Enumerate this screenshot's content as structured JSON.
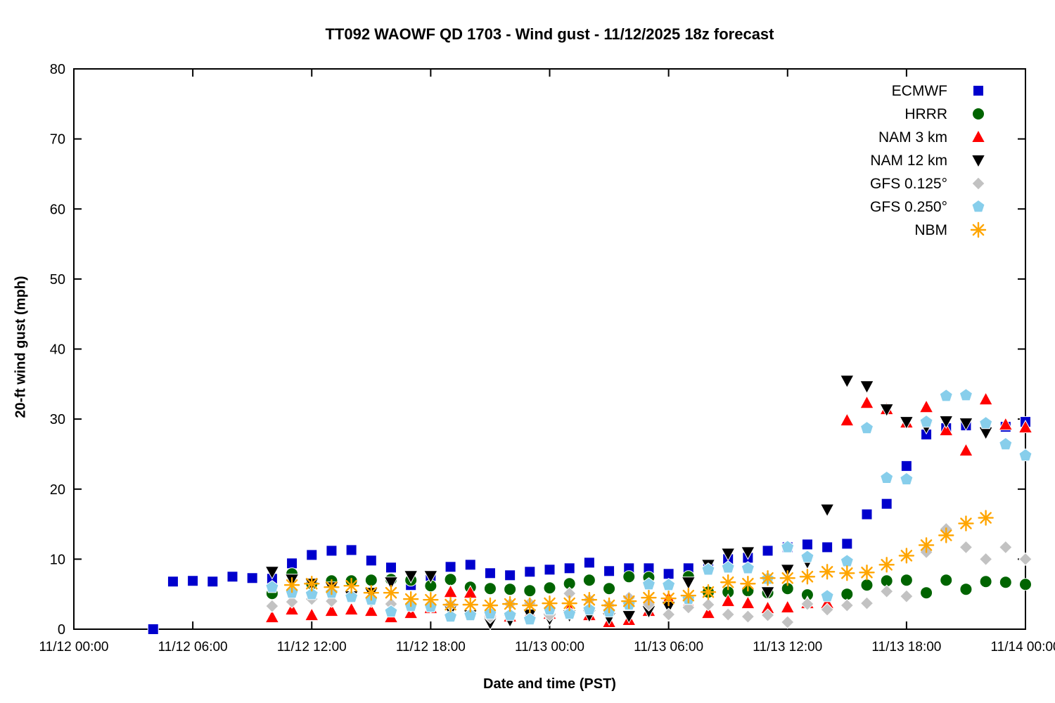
{
  "chart_data": {
    "type": "scatter",
    "title": "TT092 WAOWF QD 1703 - Wind gust - 11/12/2025 18z forecast",
    "xlabel": "Date and time (PST)",
    "ylabel": "20-ft wind gust (mph)",
    "ylim": [
      0,
      80
    ],
    "yticks": [
      0,
      10,
      20,
      30,
      40,
      50,
      60,
      70,
      80
    ],
    "x_hours_range": [
      0,
      48
    ],
    "xticks_hours": [
      0,
      6,
      12,
      18,
      24,
      30,
      36,
      42,
      48
    ],
    "xtick_labels": [
      "11/12 00:00",
      "11/12 06:00",
      "11/12 12:00",
      "11/12 18:00",
      "11/13 00:00",
      "11/13 06:00",
      "11/13 12:00",
      "11/13 18:00",
      "11/14 00:00"
    ],
    "grid": false,
    "legend_position": "top-right-inside",
    "series": [
      {
        "name": "ECMWF",
        "marker": "square",
        "color": "#0000cd",
        "points": [
          [
            4,
            0
          ],
          [
            5,
            6.8
          ],
          [
            6,
            6.9
          ],
          [
            7,
            6.8
          ],
          [
            8,
            7.5
          ],
          [
            9,
            7.3
          ],
          [
            10,
            7.2
          ],
          [
            11,
            9.4
          ],
          [
            12,
            10.6
          ],
          [
            13,
            11.2
          ],
          [
            14,
            11.3
          ],
          [
            15,
            9.8
          ],
          [
            16,
            8.8
          ],
          [
            17,
            6.3
          ],
          [
            18,
            7.6
          ],
          [
            19,
            8.9
          ],
          [
            20,
            9.2
          ],
          [
            21,
            8.0
          ],
          [
            22,
            7.7
          ],
          [
            23,
            8.2
          ],
          [
            24,
            8.5
          ],
          [
            25,
            8.7
          ],
          [
            26,
            9.5
          ],
          [
            27,
            8.3
          ],
          [
            28,
            8.7
          ],
          [
            29,
            8.7
          ],
          [
            30,
            7.9
          ],
          [
            31,
            8.7
          ],
          [
            32,
            8.8
          ],
          [
            33,
            10.0
          ],
          [
            34,
            10.2
          ],
          [
            35,
            11.2
          ],
          [
            36,
            11.7
          ],
          [
            37,
            12.1
          ],
          [
            38,
            11.7
          ],
          [
            39,
            12.2
          ],
          [
            40,
            16.4
          ],
          [
            41,
            17.9
          ],
          [
            42,
            23.3
          ],
          [
            43,
            27.8
          ],
          [
            44,
            28.7
          ],
          [
            45,
            29.1
          ],
          [
            46,
            29.1
          ],
          [
            47,
            28.9
          ],
          [
            48,
            29.6
          ]
        ]
      },
      {
        "name": "HRRR",
        "marker": "circle",
        "color": "#006400",
        "points": [
          [
            10,
            5.1
          ],
          [
            11,
            7.9
          ],
          [
            12,
            6.5
          ],
          [
            13,
            6.9
          ],
          [
            14,
            6.9
          ],
          [
            15,
            7.0
          ],
          [
            16,
            7.1
          ],
          [
            17,
            7.0
          ],
          [
            18,
            6.2
          ],
          [
            19,
            7.1
          ],
          [
            20,
            6.0
          ],
          [
            21,
            5.8
          ],
          [
            22,
            5.7
          ],
          [
            23,
            5.5
          ],
          [
            24,
            5.9
          ],
          [
            25,
            6.5
          ],
          [
            26,
            7.0
          ],
          [
            27,
            5.8
          ],
          [
            28,
            7.5
          ],
          [
            29,
            7.4
          ],
          [
            30,
            6.3
          ],
          [
            31,
            7.5
          ],
          [
            32,
            5.3
          ],
          [
            33,
            5.3
          ],
          [
            34,
            5.5
          ],
          [
            35,
            5.2
          ],
          [
            36,
            5.8
          ],
          [
            37,
            4.9
          ],
          [
            38,
            4.7
          ],
          [
            39,
            5.0
          ],
          [
            40,
            6.3
          ],
          [
            41,
            6.9
          ],
          [
            42,
            7.0
          ],
          [
            43,
            5.2
          ],
          [
            44,
            7.0
          ],
          [
            45,
            5.7
          ],
          [
            46,
            6.8
          ],
          [
            47,
            6.7
          ],
          [
            48,
            6.4
          ]
        ]
      },
      {
        "name": "NAM 3 km",
        "marker": "triangle-up",
        "color": "#ff0000",
        "points": [
          [
            10,
            1.7
          ],
          [
            11,
            2.8
          ],
          [
            12,
            2.0
          ],
          [
            13,
            2.6
          ],
          [
            14,
            2.8
          ],
          [
            15,
            2.6
          ],
          [
            16,
            1.7
          ],
          [
            17,
            2.3
          ],
          [
            18,
            3.0
          ],
          [
            19,
            5.3
          ],
          [
            20,
            5.2
          ],
          [
            21,
            2.5
          ],
          [
            22,
            1.8
          ],
          [
            23,
            2.3
          ],
          [
            24,
            2.2
          ],
          [
            25,
            2.9
          ],
          [
            26,
            2.0
          ],
          [
            27,
            1.0
          ],
          [
            28,
            1.3
          ],
          [
            29,
            2.6
          ],
          [
            30,
            4.4
          ],
          [
            31,
            3.8
          ],
          [
            32,
            2.3
          ],
          [
            33,
            4.0
          ],
          [
            34,
            3.7
          ],
          [
            35,
            3.0
          ],
          [
            36,
            3.1
          ],
          [
            37,
            3.7
          ],
          [
            38,
            3.7
          ],
          [
            39,
            29.8
          ],
          [
            40,
            32.3
          ],
          [
            41,
            31.4
          ],
          [
            42,
            29.5
          ],
          [
            43,
            31.7
          ],
          [
            44,
            28.4
          ],
          [
            45,
            25.5
          ],
          [
            46,
            32.8
          ],
          [
            47,
            29.2
          ],
          [
            48,
            28.8
          ]
        ]
      },
      {
        "name": "NAM 12 km",
        "marker": "triangle-down",
        "color": "#000000",
        "points": [
          [
            10,
            8.2
          ],
          [
            11,
            7.1
          ],
          [
            12,
            6.5
          ],
          [
            13,
            6.0
          ],
          [
            14,
            4.7
          ],
          [
            15,
            5.2
          ],
          [
            16,
            6.7
          ],
          [
            17,
            7.6
          ],
          [
            18,
            7.6
          ],
          [
            19,
            2.7
          ],
          [
            20,
            2.0
          ],
          [
            21,
            0.9
          ],
          [
            22,
            1.3
          ],
          [
            23,
            2.1
          ],
          [
            24,
            1.5
          ],
          [
            25,
            2.0
          ],
          [
            26,
            2.0
          ],
          [
            27,
            1.6
          ],
          [
            28,
            1.9
          ],
          [
            29,
            2.6
          ],
          [
            30,
            3.2
          ],
          [
            31,
            6.7
          ],
          [
            32,
            9.2
          ],
          [
            33,
            10.8
          ],
          [
            34,
            11.0
          ],
          [
            35,
            5.3
          ],
          [
            36,
            8.5
          ],
          [
            37,
            9.6
          ],
          [
            38,
            17.1
          ],
          [
            39,
            35.5
          ],
          [
            40,
            34.7
          ],
          [
            41,
            31.4
          ],
          [
            42,
            29.6
          ],
          [
            43,
            28.9
          ],
          [
            44,
            29.7
          ],
          [
            45,
            29.4
          ],
          [
            46,
            28.1
          ]
        ]
      },
      {
        "name": "GFS 0.125°",
        "marker": "diamond",
        "color": "#c2c2c2",
        "points": [
          [
            10,
            3.3
          ],
          [
            11,
            3.9
          ],
          [
            12,
            4.3
          ],
          [
            13,
            4.0
          ],
          [
            14,
            4.6
          ],
          [
            15,
            4.0
          ],
          [
            16,
            3.6
          ],
          [
            17,
            3.3
          ],
          [
            18,
            3.2
          ],
          [
            19,
            3.5
          ],
          [
            20,
            2.0
          ],
          [
            21,
            1.7
          ],
          [
            22,
            3.6
          ],
          [
            23,
            3.7
          ],
          [
            24,
            2.0
          ],
          [
            25,
            5.1
          ],
          [
            26,
            4.2
          ],
          [
            27,
            3.4
          ],
          [
            28,
            4.5
          ],
          [
            29,
            3.5
          ],
          [
            30,
            2.1
          ],
          [
            31,
            3.1
          ],
          [
            32,
            3.5
          ],
          [
            33,
            2.1
          ],
          [
            34,
            1.8
          ],
          [
            35,
            2.0
          ],
          [
            36,
            1.0
          ],
          [
            37,
            3.6
          ],
          [
            38,
            2.8
          ],
          [
            39,
            3.4
          ],
          [
            40,
            3.7
          ],
          [
            41,
            5.4
          ],
          [
            42,
            4.7
          ],
          [
            43,
            11.0
          ],
          [
            44,
            14.3
          ],
          [
            45,
            11.7
          ],
          [
            46,
            10.0
          ],
          [
            47,
            11.7
          ],
          [
            48,
            10.0
          ]
        ]
      },
      {
        "name": "GFS 0.250°",
        "marker": "pentagon",
        "color": "#87ceeb",
        "points": [
          [
            10,
            6.0
          ],
          [
            11,
            5.2
          ],
          [
            12,
            5.0
          ],
          [
            13,
            5.2
          ],
          [
            14,
            4.6
          ],
          [
            15,
            4.2
          ],
          [
            16,
            2.5
          ],
          [
            17,
            3.3
          ],
          [
            18,
            3.2
          ],
          [
            19,
            1.8
          ],
          [
            20,
            2.0
          ],
          [
            21,
            2.2
          ],
          [
            22,
            2.0
          ],
          [
            23,
            1.4
          ],
          [
            24,
            2.8
          ],
          [
            25,
            2.2
          ],
          [
            26,
            2.8
          ],
          [
            27,
            2.5
          ],
          [
            28,
            3.5
          ],
          [
            29,
            6.4
          ],
          [
            30,
            6.3
          ],
          [
            31,
            4.3
          ],
          [
            32,
            8.5
          ],
          [
            33,
            8.8
          ],
          [
            34,
            8.7
          ],
          [
            35,
            7.2
          ],
          [
            36,
            11.7
          ],
          [
            37,
            10.3
          ],
          [
            38,
            4.7
          ],
          [
            39,
            9.7
          ],
          [
            40,
            28.7
          ],
          [
            41,
            21.6
          ],
          [
            42,
            21.4
          ],
          [
            43,
            29.6
          ],
          [
            44,
            33.3
          ],
          [
            45,
            33.4
          ],
          [
            46,
            29.4
          ],
          [
            47,
            26.4
          ],
          [
            48,
            24.8
          ]
        ]
      },
      {
        "name": "NBM",
        "marker": "asterisk",
        "color": "#ffa500",
        "points": [
          [
            11,
            6.3
          ],
          [
            12,
            6.5
          ],
          [
            13,
            6.0
          ],
          [
            14,
            6.2
          ],
          [
            15,
            5.2
          ],
          [
            16,
            5.2
          ],
          [
            17,
            4.3
          ],
          [
            18,
            4.2
          ],
          [
            19,
            3.5
          ],
          [
            20,
            3.5
          ],
          [
            21,
            3.4
          ],
          [
            22,
            3.6
          ],
          [
            23,
            3.4
          ],
          [
            24,
            3.7
          ],
          [
            25,
            3.7
          ],
          [
            26,
            4.2
          ],
          [
            27,
            3.4
          ],
          [
            28,
            4.0
          ],
          [
            29,
            4.5
          ],
          [
            30,
            4.4
          ],
          [
            31,
            4.8
          ],
          [
            32,
            5.3
          ],
          [
            33,
            6.7
          ],
          [
            34,
            6.5
          ],
          [
            35,
            7.3
          ],
          [
            36,
            7.3
          ],
          [
            37,
            7.5
          ],
          [
            38,
            8.2
          ],
          [
            39,
            8.0
          ],
          [
            40,
            8.1
          ],
          [
            41,
            9.2
          ],
          [
            42,
            10.5
          ],
          [
            43,
            12.0
          ],
          [
            44,
            13.4
          ],
          [
            45,
            15.1
          ],
          [
            46,
            15.9
          ]
        ]
      }
    ]
  }
}
